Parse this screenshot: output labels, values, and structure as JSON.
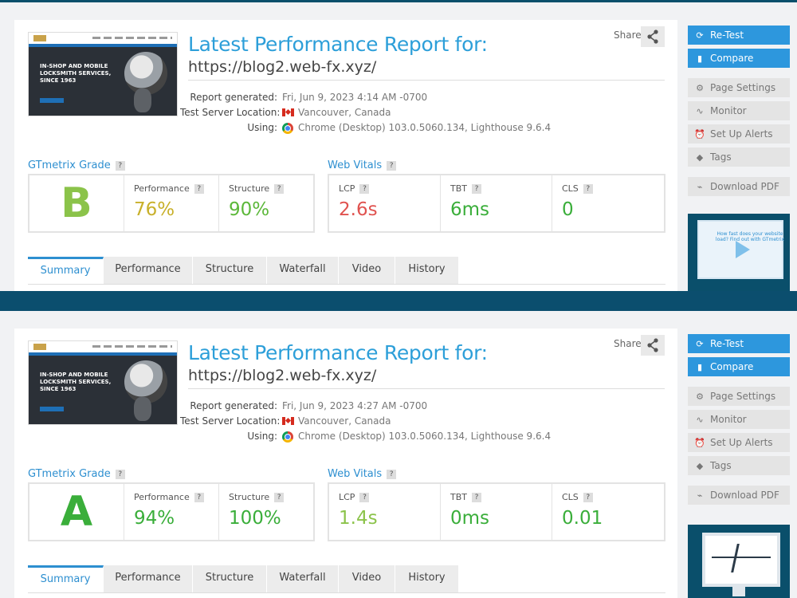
{
  "reports": [
    {
      "title": "Latest Performance Report for:",
      "url": "https://blog2.web-fx.xyz/",
      "share_label": "Share",
      "meta": {
        "generated_label": "Report generated:",
        "generated_value": "Fri, Jun 9, 2023 4:14 AM -0700",
        "location_label": "Test Server Location:",
        "location_value": "Vancouver, Canada",
        "using_label": "Using:",
        "using_value": "Chrome (Desktop) 103.0.5060.134, Lighthouse 9.6.4"
      },
      "thumbnail_text": "IN-SHOP AND MOBILE LOCKSMITH SERVICES, SINCE 1963",
      "gtmetrix": {
        "heading": "GTmetrix Grade",
        "grade": "B",
        "grade_color": "#8bc34a",
        "performance_label": "Performance",
        "performance_value": "76%",
        "performance_color": "#c8b02a",
        "structure_label": "Structure",
        "structure_value": "90%",
        "structure_color": "#5cb83a"
      },
      "vitals": {
        "heading": "Web Vitals",
        "lcp_label": "LCP",
        "lcp_value": "2.6s",
        "lcp_color": "#e0524f",
        "tbt_label": "TBT",
        "tbt_value": "6ms",
        "tbt_color": "#3aae3a",
        "cls_label": "CLS",
        "cls_value": "0",
        "cls_color": "#3aae3a"
      },
      "video_text": "How fast does your website load? Find out with GTmetrix"
    },
    {
      "title": "Latest Performance Report for:",
      "url": "https://blog2.web-fx.xyz/",
      "share_label": "Share",
      "meta": {
        "generated_label": "Report generated:",
        "generated_value": "Fri, Jun 9, 2023 4:27 AM -0700",
        "location_label": "Test Server Location:",
        "location_value": "Vancouver, Canada",
        "using_label": "Using:",
        "using_value": "Chrome (Desktop) 103.0.5060.134, Lighthouse 9.6.4"
      },
      "thumbnail_text": "IN-SHOP AND MOBILE LOCKSMITH SERVICES, SINCE 1963",
      "gtmetrix": {
        "heading": "GTmetrix Grade",
        "grade": "A",
        "grade_color": "#3aae3a",
        "performance_label": "Performance",
        "performance_value": "94%",
        "performance_color": "#3aae3a",
        "structure_label": "Structure",
        "structure_value": "100%",
        "structure_color": "#3aae3a"
      },
      "vitals": {
        "heading": "Web Vitals",
        "lcp_label": "LCP",
        "lcp_value": "1.4s",
        "lcp_color": "#8bc34a",
        "tbt_label": "TBT",
        "tbt_value": "0ms",
        "tbt_color": "#3aae3a",
        "cls_label": "CLS",
        "cls_value": "0.01",
        "cls_color": "#3aae3a"
      }
    }
  ],
  "tabs": [
    "Summary",
    "Performance",
    "Structure",
    "Waterfall",
    "Video",
    "History"
  ],
  "sidebar": {
    "retest": "Re-Test",
    "compare": "Compare",
    "page_settings": "Page Settings",
    "monitor": "Monitor",
    "alerts": "Set Up Alerts",
    "tags": "Tags",
    "download_pdf": "Download PDF"
  },
  "icons": [
    "refresh-icon",
    "compare-icon",
    "gear-icon",
    "pulse-icon",
    "alarm-icon",
    "tag-icon",
    "pdf-icon",
    "share-icon",
    "canada-flag-icon",
    "chrome-icon",
    "help-icon",
    "play-icon"
  ]
}
